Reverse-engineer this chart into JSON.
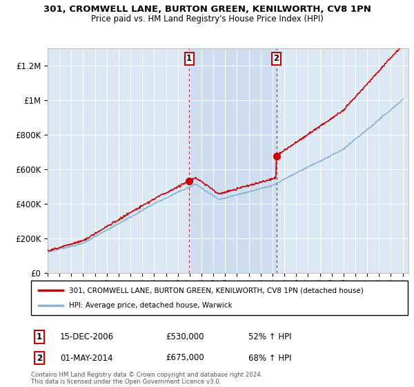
{
  "title": "301, CROMWELL LANE, BURTON GREEN, KENILWORTH, CV8 1PN",
  "subtitle": "Price paid vs. HM Land Registry's House Price Index (HPI)",
  "background_color": "#ffffff",
  "plot_bg_color": "#dce9f5",
  "ylim": [
    0,
    1300000
  ],
  "yticks": [
    0,
    200000,
    400000,
    600000,
    800000,
    1000000,
    1200000
  ],
  "ytick_labels": [
    "£0",
    "£200K",
    "£400K",
    "£600K",
    "£800K",
    "£1M",
    "£1.2M"
  ],
  "sale1_x": 2006.96,
  "sale1_y": 530000,
  "sale1_label": "1",
  "sale1_date": "15-DEC-2006",
  "sale1_price": "£530,000",
  "sale1_hpi": "52% ↑ HPI",
  "sale2_x": 2014.33,
  "sale2_y": 675000,
  "sale2_label": "2",
  "sale2_date": "01-MAY-2014",
  "sale2_price": "£675,000",
  "sale2_hpi": "68% ↑ HPI",
  "hpi_line_color": "#8ab4d4",
  "price_line_color": "#cc0000",
  "marker_color": "#cc0000",
  "vline_color": "#cc0000",
  "legend_label_price": "301, CROMWELL LANE, BURTON GREEN, KENILWORTH, CV8 1PN (detached house)",
  "legend_label_hpi": "HPI: Average price, detached house, Warwick",
  "footer": "Contains HM Land Registry data © Crown copyright and database right 2024.\nThis data is licensed under the Open Government Licence v3.0.",
  "xmin": 1995,
  "xmax": 2025.5,
  "xticks": [
    1995,
    1996,
    1997,
    1998,
    1999,
    2000,
    2001,
    2002,
    2003,
    2004,
    2005,
    2006,
    2007,
    2008,
    2009,
    2010,
    2011,
    2012,
    2013,
    2014,
    2015,
    2016,
    2017,
    2018,
    2019,
    2020,
    2021,
    2022,
    2023,
    2024,
    2025
  ],
  "shaded_xmin": 2006.96,
  "shaded_xmax": 2014.33,
  "shaded_color": "#dce9f5"
}
